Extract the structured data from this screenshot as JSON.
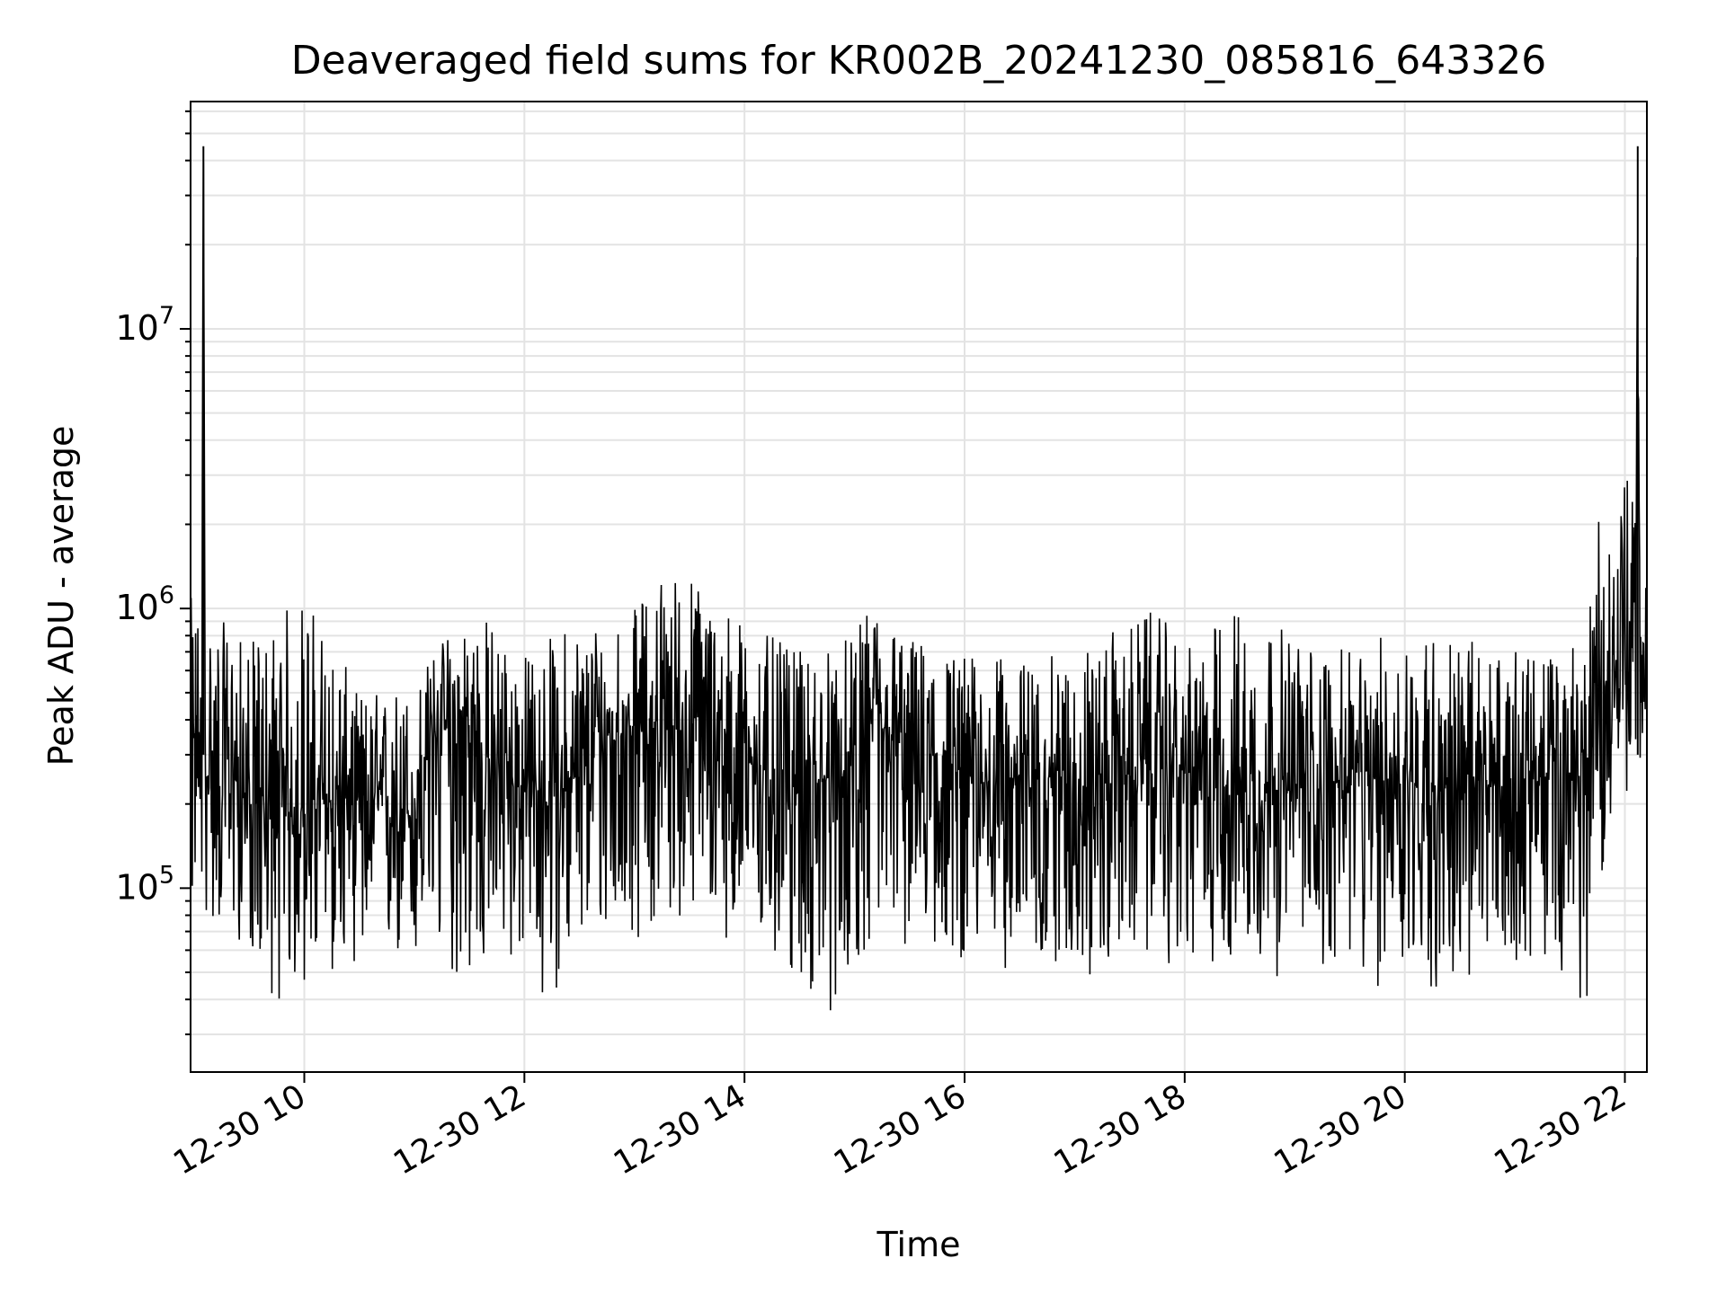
{
  "chart_data": {
    "type": "line",
    "title": "Deaveraged field sums for KR002B_20241230_085816_643326",
    "xlabel": "Time",
    "ylabel": "Peak ADU - average",
    "x_axis": {
      "kind": "datetime",
      "range": [
        "12-30 08:58",
        "12-30 22:12"
      ],
      "tick_labels": [
        "12-30 10",
        "12-30 12",
        "12-30 14",
        "12-30 16",
        "12-30 18",
        "12-30 20",
        "12-30 22"
      ],
      "tick_values": [
        "12-30 10:00",
        "12-30 12:00",
        "12-30 14:00",
        "12-30 16:00",
        "12-30 18:00",
        "12-30 20:00",
        "12-30 22:00"
      ]
    },
    "y_axis": {
      "scale": "log",
      "range": [
        22000,
        65000000
      ],
      "major_ticks": [
        100000,
        1000000,
        10000000
      ],
      "tick_labels": [
        {
          "base": "10",
          "exp": "5"
        },
        {
          "base": "10",
          "exp": "6"
        },
        {
          "base": "10",
          "exp": "7"
        }
      ]
    },
    "grid": true,
    "line_color": "#000000",
    "series": [
      {
        "name": "",
        "x": [
          "12-30 08:58",
          "12-30 09:04",
          "12-30 09:05",
          "12-30 09:06",
          "12-30 09:20",
          "12-30 09:30",
          "12-30 09:45",
          "12-30 10:00",
          "12-30 10:20",
          "12-30 10:40",
          "12-30 11:00",
          "12-30 11:10",
          "12-30 11:30",
          "12-30 11:45",
          "12-30 12:00",
          "12-30 12:15",
          "12-30 12:30",
          "12-30 12:45",
          "12-30 13:00",
          "12-30 13:15",
          "12-30 13:30",
          "12-30 13:45",
          "12-30 14:00",
          "12-30 14:15",
          "12-30 14:30",
          "12-30 14:45",
          "12-30 15:00",
          "12-30 15:10",
          "12-30 15:20",
          "12-30 15:40",
          "12-30 16:00",
          "12-30 16:20",
          "12-30 16:40",
          "12-30 17:00",
          "12-30 17:20",
          "12-30 17:40",
          "12-30 18:00",
          "12-30 18:20",
          "12-30 18:40",
          "12-30 19:00",
          "12-30 19:20",
          "12-30 19:40",
          "12-30 20:00",
          "12-30 20:20",
          "12-30 20:40",
          "12-30 21:00",
          "12-30 21:20",
          "12-30 21:40",
          "12-30 21:50",
          "12-30 22:00",
          "12-30 22:06",
          "12-30 22:07",
          "12-30 22:08",
          "12-30 22:12"
        ],
        "y": [
          300000,
          350000,
          45000000,
          250000,
          280000,
          200000,
          180000,
          190000,
          210000,
          200000,
          180000,
          400000,
          300000,
          280000,
          220000,
          230000,
          250000,
          350000,
          380000,
          400000,
          350000,
          330000,
          300000,
          250000,
          230000,
          240000,
          260000,
          400000,
          330000,
          300000,
          250000,
          240000,
          260000,
          230000,
          240000,
          270000,
          260000,
          240000,
          230000,
          220000,
          240000,
          250000,
          240000,
          230000,
          220000,
          250000,
          240000,
          260000,
          550000,
          600000,
          900000,
          45000000,
          800000,
          700000
        ]
      }
    ],
    "envelope": {
      "high": {
        "x": [
          "12-30 09:00",
          "12-30 09:30",
          "12-30 10:00",
          "12-30 10:30",
          "12-30 11:00",
          "12-30 11:30",
          "12-30 12:00",
          "12-30 12:30",
          "12-30 13:00",
          "12-30 13:15",
          "12-30 13:30",
          "12-30 14:00",
          "12-30 14:30",
          "12-30 15:00",
          "12-30 15:10",
          "12-30 15:30",
          "12-30 16:00",
          "12-30 16:30",
          "12-30 17:00",
          "12-30 17:30",
          "12-30 17:45",
          "12-30 18:00",
          "12-30 18:30",
          "12-30 19:00",
          "12-30 19:30",
          "12-30 20:00",
          "12-30 20:30",
          "12-30 21:00",
          "12-30 21:30",
          "12-30 21:45",
          "12-30 22:00",
          "12-30 22:12"
        ],
        "y": [
          1100000,
          750000,
          1200000,
          500000,
          550000,
          1100000,
          700000,
          950000,
          1000000,
          1400000,
          1400000,
          900000,
          700000,
          800000,
          1100000,
          800000,
          700000,
          650000,
          700000,
          900000,
          1000000,
          700000,
          1100000,
          800000,
          700000,
          900000,
          800000,
          700000,
          700000,
          2000000,
          3500000,
          1200000
        ]
      },
      "low": {
        "x": [
          "12-30 09:00",
          "12-30 09:30",
          "12-30 09:45",
          "12-30 10:30",
          "12-30 11:00",
          "12-30 11:30",
          "12-30 12:00",
          "12-30 12:10",
          "12-30 12:30",
          "12-30 13:00",
          "12-30 13:30",
          "12-30 14:00",
          "12-30 14:30",
          "12-30 14:45",
          "12-30 15:00",
          "12-30 15:30",
          "12-30 16:00",
          "12-30 16:30",
          "12-30 17:00",
          "12-30 17:10",
          "12-30 17:30",
          "12-30 18:00",
          "12-30 18:30",
          "12-30 19:00",
          "12-30 19:30",
          "12-30 19:35",
          "12-30 20:00",
          "12-30 20:25",
          "12-30 20:30",
          "12-30 21:00",
          "12-30 21:30",
          "12-30 21:37",
          "12-30 21:50",
          "12-30 22:12"
        ],
        "y": [
          80000,
          60000,
          38000,
          55000,
          50000,
          45000,
          55000,
          36000,
          60000,
          65000,
          80000,
          60000,
          45000,
          32000,
          55000,
          60000,
          55000,
          50000,
          55000,
          43000,
          60000,
          50000,
          55000,
          45000,
          55000,
          37000,
          50000,
          38000,
          40000,
          55000,
          50000,
          31000,
          150000,
          300000
        ]
      }
    }
  }
}
